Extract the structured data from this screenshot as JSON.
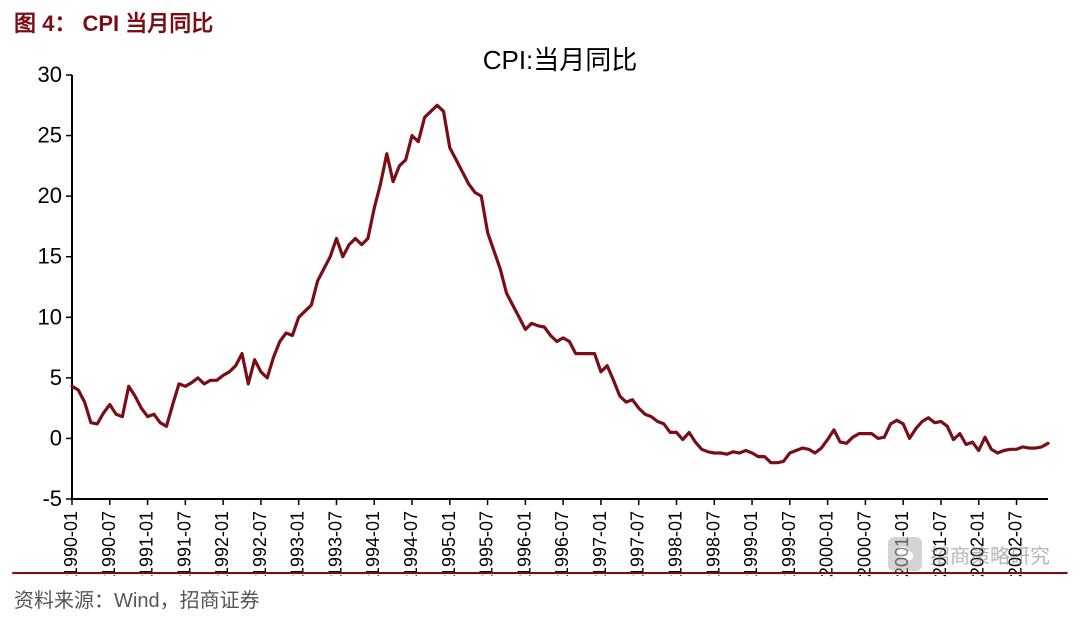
{
  "figure": {
    "label": "图 4：",
    "title": "CPI 当月同比",
    "title_color": "#7a0e17",
    "title_fontsize": 22,
    "rule_color": "#7a0e17",
    "rule_width": 2
  },
  "source": {
    "text": "资料来源：Wind，招商证券",
    "color": "#555555",
    "fontsize": 20
  },
  "watermark": {
    "text": "招商策略研究"
  },
  "chart": {
    "type": "line",
    "series_title": "CPI:当月同比",
    "series_title_fontsize": 26,
    "background_color": "#ffffff",
    "axis_color": "#000000",
    "axis_width": 2,
    "tick_fontsize_y": 22,
    "tick_fontsize_x": 18,
    "line_color": "#7a0e17",
    "line_width": 3.2,
    "ylim": [
      -5,
      30
    ],
    "ytick_step": 5,
    "yticks": [
      -5,
      0,
      5,
      10,
      15,
      20,
      25,
      30
    ],
    "x_labels": [
      "1990-01",
      "1990-07",
      "1991-01",
      "1991-07",
      "1992-01",
      "1992-07",
      "1993-01",
      "1993-07",
      "1994-01",
      "1994-07",
      "1995-01",
      "1995-07",
      "1996-01",
      "1996-07",
      "1997-01",
      "1997-07",
      "1998-01",
      "1998-07",
      "1999-01",
      "1999-07",
      "2000-01",
      "2000-07",
      "2001-01",
      "2001-07",
      "2002-01",
      "2002-07"
    ],
    "x_label_rotation": -90,
    "x_tick_count_total_months": 156,
    "values": [
      4.3,
      4.0,
      3.0,
      1.3,
      1.2,
      2.1,
      2.8,
      2.0,
      1.8,
      4.3,
      3.5,
      2.5,
      1.8,
      2.0,
      1.3,
      1.0,
      2.8,
      4.5,
      4.3,
      4.6,
      5.0,
      4.5,
      4.8,
      4.8,
      5.2,
      5.5,
      6.0,
      7.0,
      4.5,
      6.5,
      5.5,
      5.0,
      6.7,
      8.0,
      8.7,
      8.5,
      10.0,
      10.5,
      11.0,
      13.0,
      14.0,
      15.0,
      16.5,
      15.0,
      16.0,
      16.5,
      16.0,
      16.5,
      19.0,
      21.0,
      23.5,
      21.2,
      22.5,
      23.0,
      25.0,
      24.5,
      26.5,
      27.0,
      27.5,
      27.0,
      24.0,
      23.0,
      22.0,
      21.0,
      20.3,
      20.0,
      17.0,
      15.5,
      14.0,
      12.0,
      11.0,
      10.0,
      9.0,
      9.5,
      9.3,
      9.2,
      8.5,
      8.0,
      8.3,
      8.0,
      7.0,
      7.0,
      7.0,
      7.0,
      5.5,
      6.0,
      4.8,
      3.5,
      3.0,
      3.2,
      2.5,
      2.0,
      1.8,
      1.4,
      1.2,
      0.5,
      0.5,
      -0.1,
      0.5,
      -0.3,
      -0.9,
      -1.1,
      -1.2,
      -1.2,
      -1.3,
      -1.1,
      -1.2,
      -1.0,
      -1.2,
      -1.5,
      -1.5,
      -2.0,
      -2.0,
      -1.9,
      -1.2,
      -1.0,
      -0.8,
      -0.9,
      -1.2,
      -0.8,
      -0.1,
      0.7,
      -0.3,
      -0.4,
      0.1,
      0.4,
      0.4,
      0.4,
      0.0,
      0.1,
      1.2,
      1.5,
      1.2,
      0.0,
      0.8,
      1.4,
      1.7,
      1.3,
      1.4,
      1.0,
      -0.1,
      0.4,
      -0.5,
      -0.3,
      -1.0,
      0.1,
      -0.9,
      -1.2,
      -1.0,
      -0.9,
      -0.9,
      -0.7,
      -0.8,
      -0.8,
      -0.7,
      -0.4
    ]
  }
}
